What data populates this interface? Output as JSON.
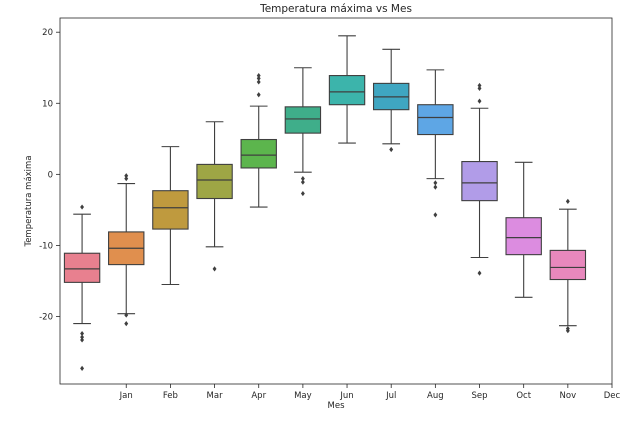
{
  "chart_data": {
    "type": "box",
    "title": "Temperatura máxima vs Mes",
    "xlabel": "Mes",
    "ylabel": "Temperatura máxima",
    "ylim": [
      -29.5,
      22
    ],
    "yticks": [
      -20,
      -10,
      0,
      10,
      20
    ],
    "xtick_labels": [
      "Jan",
      "Feb",
      "Mar",
      "Apr",
      "May",
      "Jun",
      "Jul",
      "Aug",
      "Sep",
      "Oct",
      "Nov",
      "Dec"
    ],
    "grid": false,
    "boxes": [
      {
        "color": "#e8808f",
        "whisker_low": -21.0,
        "q1": -15.2,
        "median": -13.3,
        "q3": -11.1,
        "whisker_high": -5.6,
        "outliers": [
          -4.6,
          -22.4,
          -22.9,
          -23.3,
          -27.3
        ]
      },
      {
        "color": "#e08f4e",
        "whisker_low": -19.6,
        "q1": -12.7,
        "median": -10.4,
        "q3": -8.1,
        "whisker_high": -1.3,
        "outliers": [
          -0.2,
          -0.6,
          -19.8,
          -21.0
        ]
      },
      {
        "color": "#bf9a3e",
        "whisker_low": -15.5,
        "q1": -7.7,
        "median": -4.7,
        "q3": -2.3,
        "whisker_high": 3.9
      },
      {
        "color": "#9ea645",
        "whisker_low": -10.2,
        "q1": -3.4,
        "median": -0.8,
        "q3": 1.4,
        "whisker_high": 7.4,
        "outliers": [
          -13.3
        ]
      },
      {
        "color": "#5cb54d",
        "whisker_low": -4.6,
        "q1": 0.9,
        "median": 2.7,
        "q3": 4.9,
        "whisker_high": 9.6,
        "outliers": [
          11.2,
          13.0,
          13.5,
          13.9
        ]
      },
      {
        "color": "#3fae8a",
        "whisker_low": 0.3,
        "q1": 5.8,
        "median": 7.8,
        "q3": 9.5,
        "whisker_high": 15.0,
        "outliers": [
          -0.6,
          -1.1,
          -2.7
        ]
      },
      {
        "color": "#3cb4ab",
        "whisker_low": 4.4,
        "q1": 9.8,
        "median": 11.6,
        "q3": 13.9,
        "whisker_high": 19.5
      },
      {
        "color": "#3fa6c1",
        "whisker_low": 4.3,
        "q1": 9.1,
        "median": 10.9,
        "q3": 12.8,
        "whisker_high": 17.6,
        "outliers": [
          3.5
        ]
      },
      {
        "color": "#5ea6e5",
        "whisker_low": -0.6,
        "q1": 5.6,
        "median": 8.0,
        "q3": 9.8,
        "whisker_high": 14.7,
        "outliers": [
          -1.2,
          -1.8,
          -5.7
        ]
      },
      {
        "color": "#b19ce8",
        "whisker_low": -11.7,
        "q1": -3.7,
        "median": -1.2,
        "q3": 1.8,
        "whisker_high": 9.3,
        "outliers": [
          10.3,
          12.1,
          12.5,
          -13.9
        ]
      },
      {
        "color": "#dc8ce0",
        "whisker_low": -17.3,
        "q1": -11.3,
        "median": -8.9,
        "q3": -6.1,
        "whisker_high": 1.7
      },
      {
        "color": "#e888bd",
        "whisker_low": -21.3,
        "q1": -14.8,
        "median": -13.1,
        "q3": -10.7,
        "whisker_high": -4.9,
        "outliers": [
          -3.8,
          -21.7,
          -22.0
        ]
      }
    ]
  }
}
